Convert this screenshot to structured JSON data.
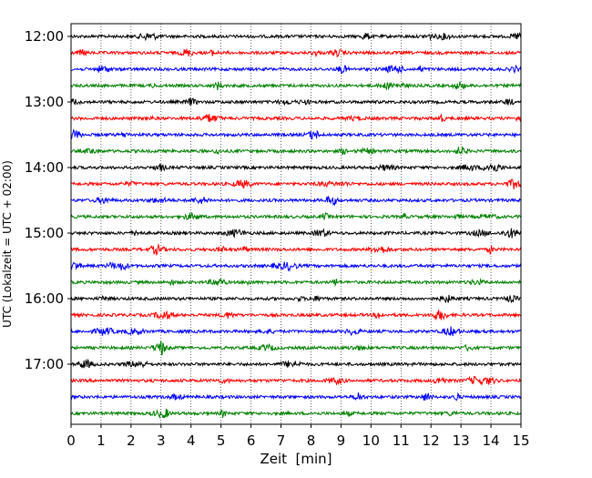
{
  "chart_data": {
    "type": "line",
    "title": "",
    "xlabel": "Zeit  [min]",
    "ylabel": "UTC (Lokalzeit = UTC + 02:00)",
    "xlim": [
      0,
      15
    ],
    "x_ticks": [
      "0",
      "1",
      "2",
      "3",
      "4",
      "5",
      "6",
      "7",
      "8",
      "9",
      "10",
      "11",
      "12",
      "13",
      "14",
      "15"
    ],
    "y_ticks": [
      "12:00",
      "13:00",
      "14:00",
      "15:00",
      "16:00",
      "17:00"
    ],
    "grid": "vertical-dotted",
    "legend": "none",
    "trace_interval_minutes": 15,
    "first_trace_utc": "12:00",
    "trace_count": 24,
    "trace_colors": [
      "#000000",
      "#ff0000",
      "#0000ff",
      "#008000"
    ]
  }
}
